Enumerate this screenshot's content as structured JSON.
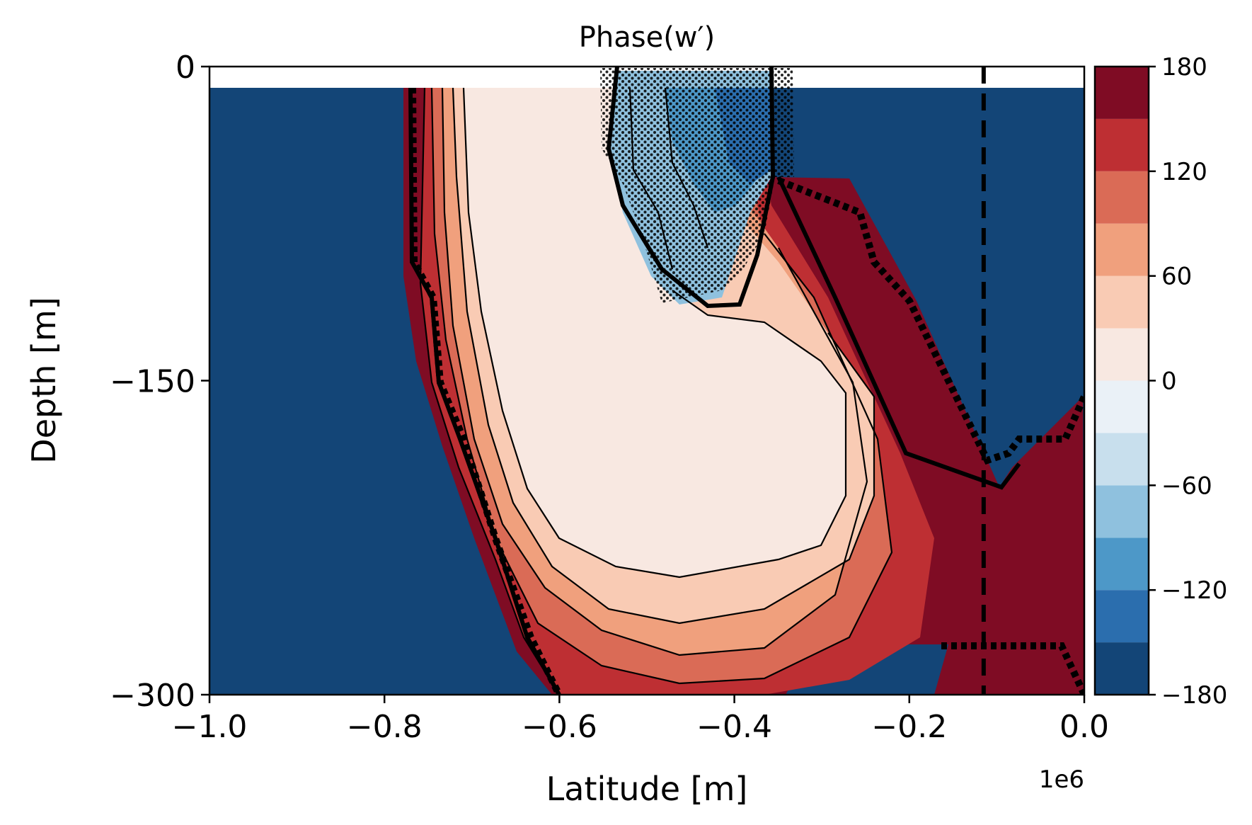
{
  "chart_data": {
    "type": "heatmap",
    "title": "Phase(w′)",
    "xlabel": "Latitude [m]",
    "ylabel": "Depth [m]",
    "x_offset_label": "1e6",
    "xlim": [
      -1.0,
      0.0
    ],
    "ylim": [
      -300,
      0
    ],
    "x_ticks": [
      -1.0,
      -0.8,
      -0.6,
      -0.4,
      -0.2,
      0.0
    ],
    "x_tick_labels": [
      "−1.0",
      "−0.8",
      "−0.6",
      "−0.4",
      "−0.2",
      "0.0"
    ],
    "y_ticks": [
      0,
      -150,
      -300
    ],
    "y_tick_labels": [
      "0",
      "−150",
      "−300"
    ],
    "grid": false,
    "colorbar": {
      "levels": [
        -180,
        -150,
        -120,
        -90,
        -60,
        -30,
        0,
        30,
        60,
        90,
        120,
        150,
        180
      ],
      "tick_values": [
        180,
        120,
        60,
        0,
        -60,
        -120,
        -180
      ],
      "tick_labels": [
        "180",
        "120",
        "60",
        "0",
        "−60",
        "−120",
        "−180"
      ],
      "colors": [
        "#134577",
        "#2b6eae",
        "#4d98c8",
        "#8fc1de",
        "#c8dfed",
        "#eaf1f7",
        "#f8e8e1",
        "#f9cbb4",
        "#f0a07d",
        "#da6b56",
        "#be2f33",
        "#7f0c24"
      ]
    },
    "field_regions": [
      {
        "name": "background",
        "phase": -180
      },
      {
        "name": "main-anomaly-outer",
        "phase": 165
      },
      {
        "name": "main-anomaly-core",
        "phase": 15
      },
      {
        "name": "surface-hatched-region",
        "phase": -120
      }
    ],
    "dashed_line_x": -0.115,
    "surface_gap_depth": -10,
    "colors": {
      "background": "#134577",
      "contour": "#000000"
    }
  }
}
